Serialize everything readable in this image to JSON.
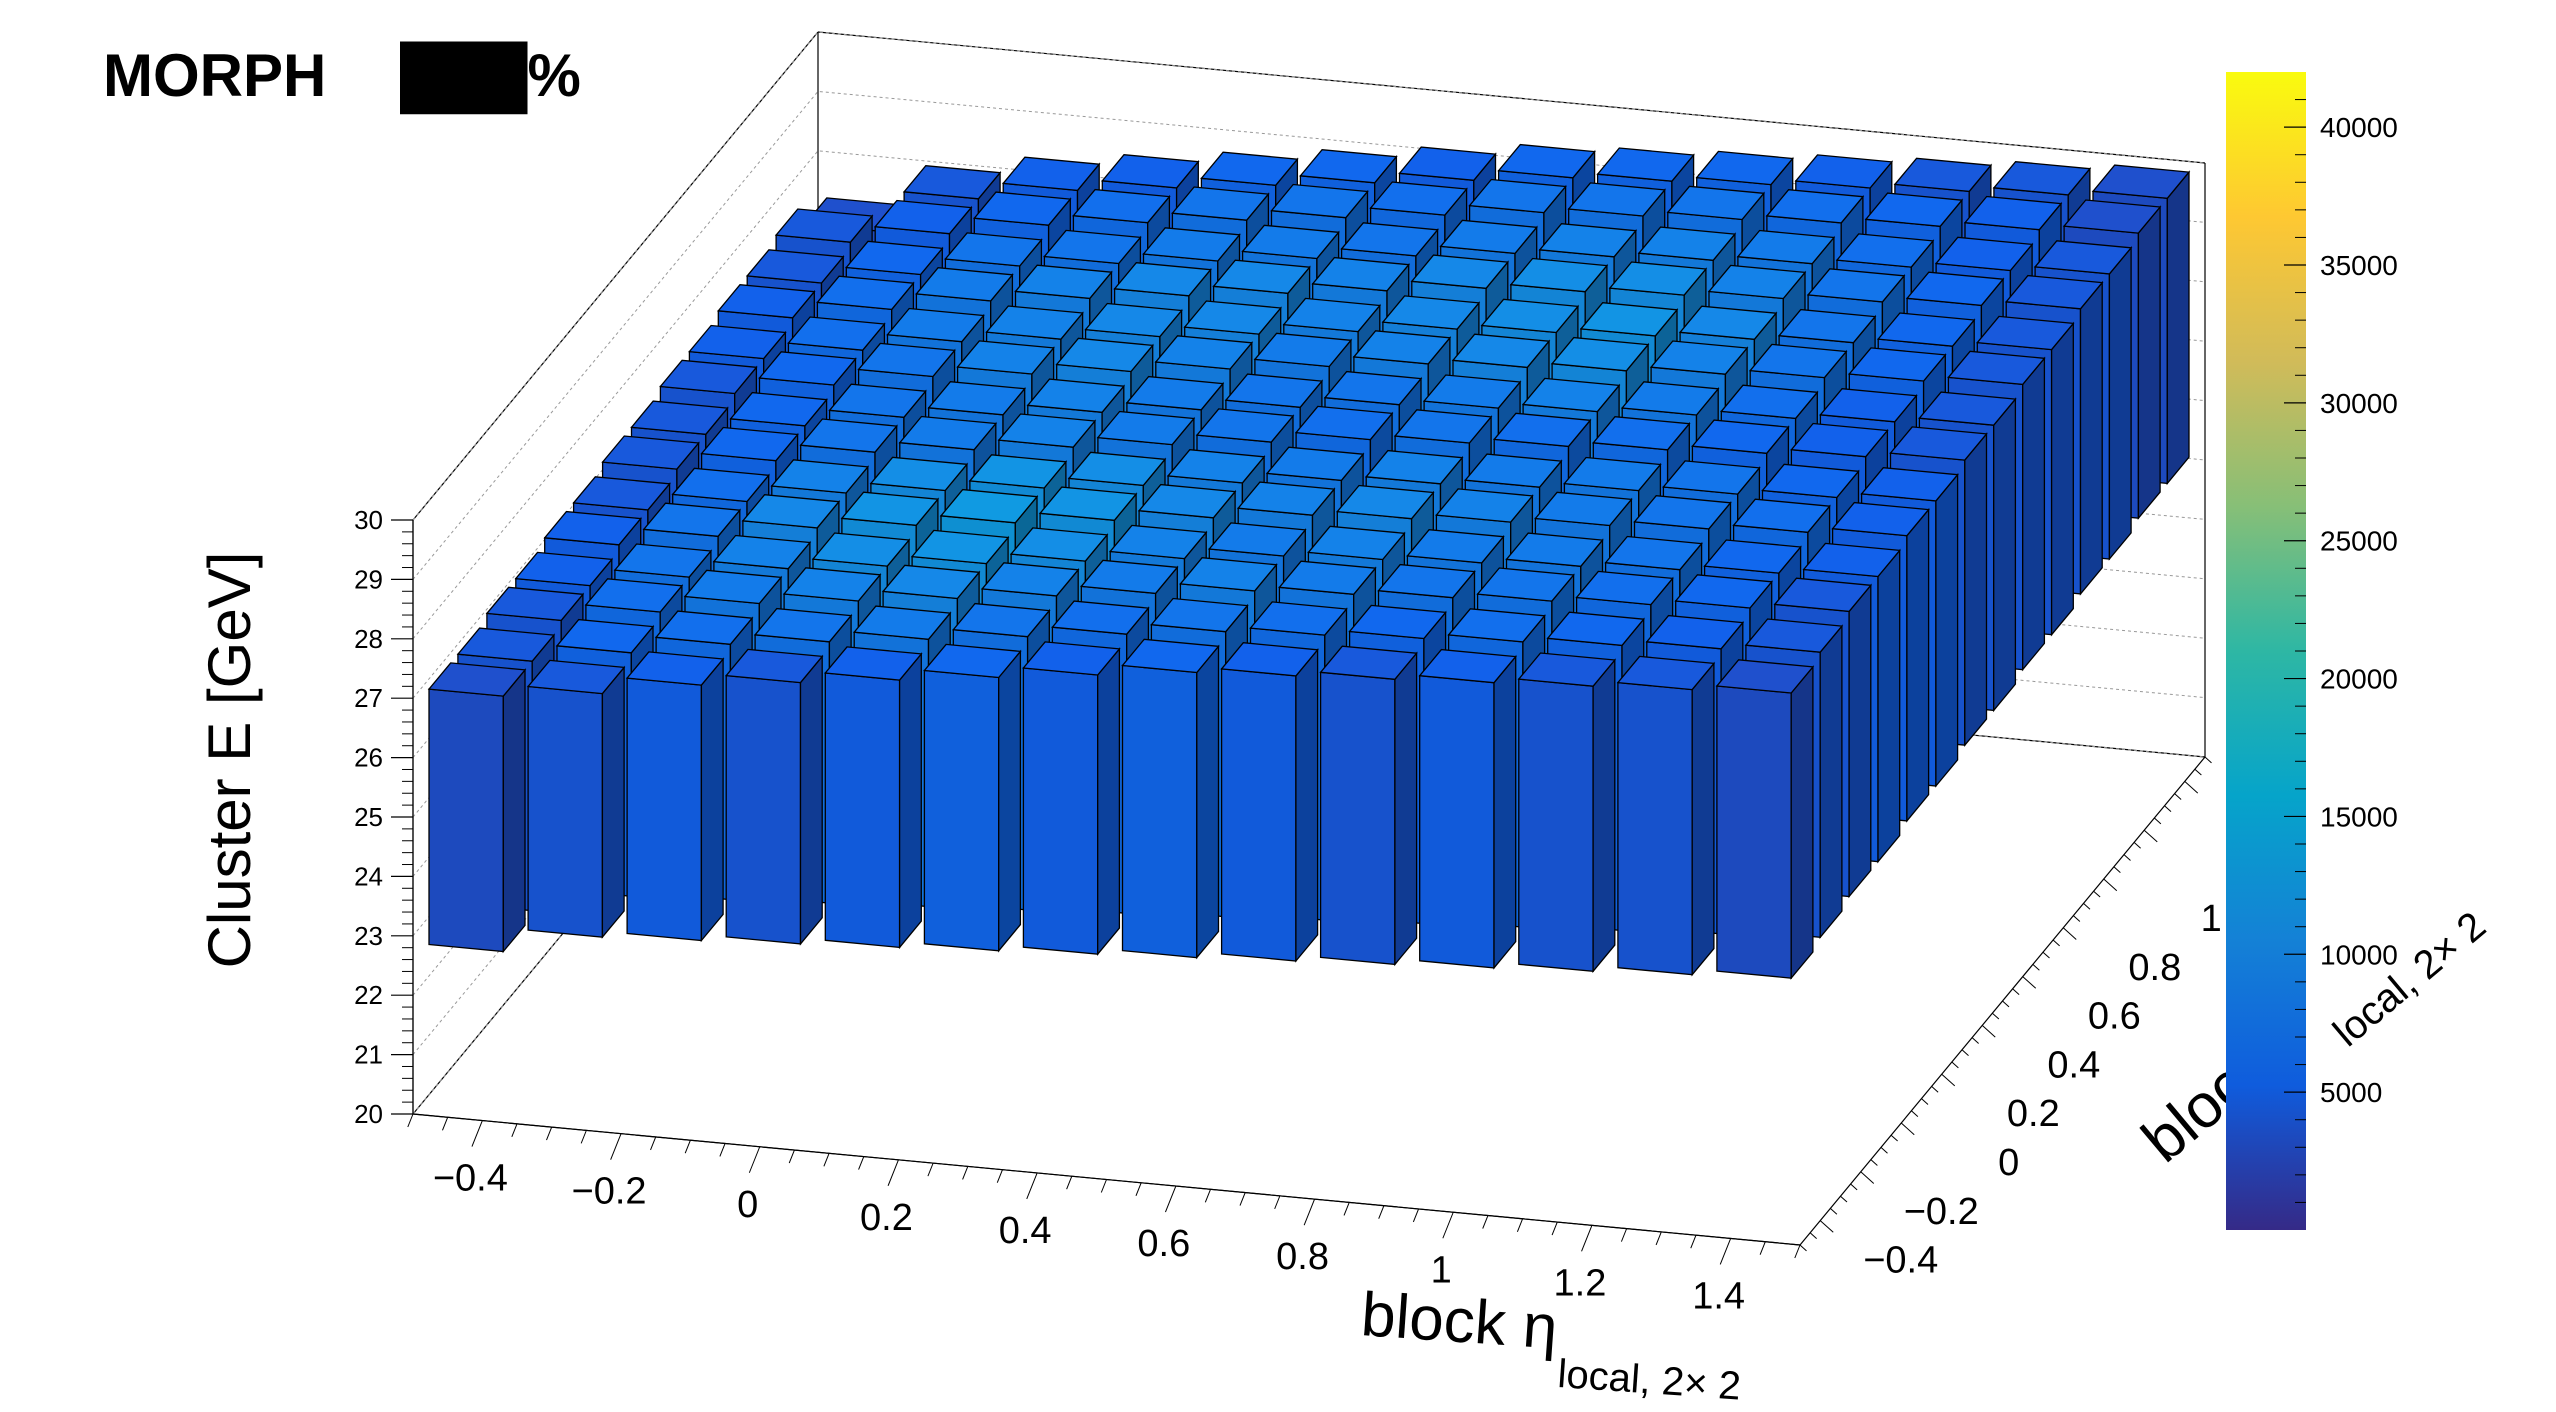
{
  "chart_data": {
    "type": "bar",
    "subtype": "lego3d",
    "title_left": "MORPH",
    "title_right": "███%",
    "zlabel": "Cluster E  [GeV]",
    "xlabel": {
      "main": "block η",
      "sub": "local, 2× 2"
    },
    "ylabel": {
      "main": "block φ",
      "sub": "local, 2× 2",
      "visible_main": "block"
    },
    "xlim": [
      -0.5,
      1.5
    ],
    "ylim": [
      -0.5,
      1.5
    ],
    "zlim": [
      20,
      30
    ],
    "x_ticks": [
      "−0.4",
      "−0.2",
      "0",
      "0.2",
      "0.4",
      "0.6",
      "0.8",
      "1",
      "1.2",
      "1.4"
    ],
    "y_ticks": [
      "−0.4",
      "−0.2",
      "0",
      "0.2",
      "0.4",
      "0.6",
      "0.8",
      "1"
    ],
    "z_ticks": [
      "20",
      "21",
      "22",
      "23",
      "24",
      "25",
      "26",
      "27",
      "28",
      "29",
      "30"
    ],
    "colorbar": {
      "min": 0,
      "max": 42000,
      "ticks": [
        "5000",
        "10000",
        "15000",
        "20000",
        "25000",
        "30000",
        "35000",
        "40000"
      ],
      "palette": [
        "#352a87",
        "#0f5cdd",
        "#1481d6",
        "#06a4ca",
        "#2eb7a4",
        "#87bf77",
        "#d1bb59",
        "#fec832",
        "#f9fb0e"
      ]
    },
    "bins_per_axis": 14,
    "bar_bottom_gev": [
      [
        22.8,
        23.2,
        23.3,
        23.4,
        23.5,
        23.6,
        23.7,
        23.8,
        23.9,
        24.0,
        24.1,
        24.2,
        24.3,
        24.4
      ],
      [
        22.9,
        23.3,
        23.4,
        23.5,
        23.6,
        23.7,
        23.8,
        23.9,
        24.0,
        24.1,
        24.2,
        24.3,
        24.4,
        24.5
      ],
      [
        23.0,
        23.4,
        23.5,
        23.6,
        23.7,
        23.8,
        23.9,
        24.0,
        24.1,
        24.2,
        24.3,
        24.4,
        24.5,
        24.6
      ],
      [
        23.0,
        23.4,
        23.5,
        23.6,
        23.7,
        23.8,
        23.9,
        24.0,
        24.1,
        24.2,
        24.3,
        24.4,
        24.5,
        24.6
      ],
      [
        23.1,
        23.5,
        23.6,
        23.7,
        23.8,
        23.9,
        24.0,
        24.1,
        24.2,
        24.3,
        24.4,
        24.5,
        24.6,
        24.7
      ],
      [
        23.1,
        23.5,
        23.6,
        23.7,
        23.8,
        23.9,
        24.0,
        24.1,
        24.2,
        24.3,
        24.4,
        24.5,
        24.6,
        24.7
      ],
      [
        23.2,
        23.6,
        23.7,
        23.8,
        23.9,
        24.0,
        24.1,
        24.2,
        24.3,
        24.4,
        24.5,
        24.6,
        24.7,
        24.8
      ],
      [
        23.2,
        23.6,
        23.7,
        23.8,
        23.9,
        24.0,
        24.1,
        24.2,
        24.3,
        24.4,
        24.5,
        24.6,
        24.7,
        24.8
      ],
      [
        23.3,
        23.7,
        23.8,
        23.9,
        24.0,
        24.1,
        24.2,
        24.3,
        24.4,
        24.5,
        24.6,
        24.7,
        24.8,
        24.9
      ],
      [
        23.3,
        23.7,
        23.8,
        23.9,
        24.0,
        24.1,
        24.2,
        24.3,
        24.4,
        24.5,
        24.6,
        24.7,
        24.8,
        24.9
      ],
      [
        23.4,
        23.8,
        23.9,
        24.0,
        24.1,
        24.2,
        24.3,
        24.4,
        24.5,
        24.6,
        24.7,
        24.8,
        24.9,
        25.0
      ],
      [
        23.4,
        23.8,
        23.9,
        24.0,
        24.1,
        24.2,
        24.3,
        24.4,
        24.5,
        24.6,
        24.7,
        24.8,
        24.9,
        25.0
      ],
      [
        23.5,
        23.9,
        24.0,
        24.1,
        24.2,
        24.3,
        24.4,
        24.5,
        24.6,
        24.7,
        24.8,
        24.9,
        25.0,
        25.1
      ],
      [
        23.1,
        23.9,
        24.0,
        24.1,
        24.2,
        24.3,
        24.4,
        24.5,
        24.6,
        24.7,
        24.8,
        24.9,
        25.0,
        25.1
      ]
    ],
    "bar_top_gev": [
      [
        27.1,
        27.3,
        27.6,
        27.8,
        28.0,
        28.2,
        28.4,
        28.6,
        28.7,
        28.8,
        28.9,
        29.0,
        29.1,
        29.2
      ],
      [
        27.1,
        27.4,
        27.7,
        27.9,
        28.1,
        28.3,
        28.5,
        28.7,
        28.8,
        28.9,
        29.0,
        29.1,
        29.2,
        29.3
      ],
      [
        27.2,
        27.5,
        27.8,
        28.0,
        28.2,
        28.4,
        28.6,
        28.8,
        28.9,
        29.0,
        29.1,
        29.2,
        29.3,
        29.4
      ],
      [
        27.2,
        27.5,
        27.8,
        28.0,
        28.2,
        28.4,
        28.6,
        28.8,
        28.9,
        29.0,
        29.1,
        29.2,
        29.3,
        29.4
      ],
      [
        27.3,
        27.6,
        27.9,
        28.1,
        28.3,
        28.5,
        28.7,
        28.9,
        29.0,
        29.1,
        29.2,
        29.3,
        29.4,
        29.5
      ],
      [
        27.3,
        27.6,
        27.9,
        28.1,
        28.3,
        28.5,
        28.7,
        28.9,
        29.0,
        29.1,
        29.2,
        29.3,
        29.4,
        29.5
      ],
      [
        27.4,
        27.7,
        28.0,
        28.2,
        28.4,
        28.6,
        28.8,
        29.0,
        29.1,
        29.2,
        29.3,
        29.4,
        29.5,
        29.6
      ],
      [
        27.4,
        27.7,
        28.0,
        28.2,
        28.4,
        28.6,
        28.8,
        29.0,
        29.1,
        29.2,
        29.3,
        29.4,
        29.5,
        29.6
      ],
      [
        27.5,
        27.8,
        28.1,
        28.3,
        28.5,
        28.7,
        28.9,
        29.1,
        29.2,
        29.3,
        29.4,
        29.5,
        29.6,
        29.7
      ],
      [
        27.5,
        27.8,
        28.1,
        28.3,
        28.5,
        28.7,
        28.9,
        29.1,
        29.2,
        29.3,
        29.4,
        29.5,
        29.6,
        29.7
      ],
      [
        27.6,
        27.9,
        28.2,
        28.4,
        28.6,
        28.8,
        29.0,
        29.2,
        29.3,
        29.4,
        29.5,
        29.6,
        29.7,
        29.8
      ],
      [
        27.6,
        27.9,
        28.2,
        28.4,
        28.6,
        28.8,
        29.0,
        29.2,
        29.3,
        29.4,
        29.5,
        29.6,
        29.7,
        29.8
      ],
      [
        27.7,
        28.0,
        28.3,
        28.5,
        28.7,
        28.9,
        29.1,
        29.3,
        29.4,
        29.5,
        29.6,
        29.7,
        29.8,
        29.9
      ],
      [
        27.3,
        28.0,
        28.3,
        28.5,
        28.7,
        28.9,
        29.1,
        29.3,
        29.4,
        29.5,
        29.6,
        29.7,
        29.8,
        29.9
      ]
    ],
    "bar_color_level": [
      [
        0.08,
        0.1,
        0.12,
        0.1,
        0.12,
        0.14,
        0.12,
        0.14,
        0.12,
        0.1,
        0.12,
        0.1,
        0.1,
        0.08
      ],
      [
        0.1,
        0.14,
        0.16,
        0.18,
        0.2,
        0.18,
        0.16,
        0.18,
        0.16,
        0.14,
        0.16,
        0.14,
        0.12,
        0.1
      ],
      [
        0.1,
        0.16,
        0.2,
        0.22,
        0.24,
        0.22,
        0.2,
        0.22,
        0.2,
        0.18,
        0.18,
        0.16,
        0.14,
        0.1
      ],
      [
        0.12,
        0.18,
        0.22,
        0.26,
        0.28,
        0.26,
        0.22,
        0.2,
        0.22,
        0.2,
        0.2,
        0.18,
        0.14,
        0.12
      ],
      [
        0.12,
        0.18,
        0.24,
        0.28,
        0.3,
        0.28,
        0.24,
        0.22,
        0.24,
        0.22,
        0.2,
        0.18,
        0.16,
        0.12
      ],
      [
        0.1,
        0.16,
        0.22,
        0.26,
        0.28,
        0.26,
        0.22,
        0.2,
        0.22,
        0.2,
        0.2,
        0.18,
        0.14,
        0.12
      ],
      [
        0.1,
        0.14,
        0.18,
        0.2,
        0.22,
        0.2,
        0.18,
        0.16,
        0.18,
        0.16,
        0.16,
        0.14,
        0.12,
        0.1
      ],
      [
        0.1,
        0.14,
        0.18,
        0.2,
        0.22,
        0.2,
        0.18,
        0.18,
        0.2,
        0.22,
        0.2,
        0.16,
        0.12,
        0.1
      ],
      [
        0.1,
        0.14,
        0.18,
        0.22,
        0.24,
        0.22,
        0.2,
        0.22,
        0.24,
        0.26,
        0.22,
        0.18,
        0.14,
        0.1
      ],
      [
        0.12,
        0.16,
        0.2,
        0.22,
        0.24,
        0.24,
        0.22,
        0.24,
        0.26,
        0.28,
        0.24,
        0.18,
        0.14,
        0.1
      ],
      [
        0.12,
        0.16,
        0.2,
        0.22,
        0.24,
        0.24,
        0.22,
        0.24,
        0.26,
        0.26,
        0.22,
        0.18,
        0.14,
        0.1
      ],
      [
        0.1,
        0.14,
        0.18,
        0.18,
        0.2,
        0.2,
        0.18,
        0.2,
        0.22,
        0.22,
        0.2,
        0.16,
        0.12,
        0.1
      ],
      [
        0.1,
        0.12,
        0.14,
        0.16,
        0.18,
        0.18,
        0.16,
        0.18,
        0.18,
        0.18,
        0.16,
        0.14,
        0.12,
        0.08
      ],
      [
        0.08,
        0.1,
        0.12,
        0.12,
        0.14,
        0.14,
        0.12,
        0.14,
        0.14,
        0.14,
        0.12,
        0.1,
        0.1,
        0.08
      ]
    ],
    "grid": true,
    "legend": "none"
  }
}
